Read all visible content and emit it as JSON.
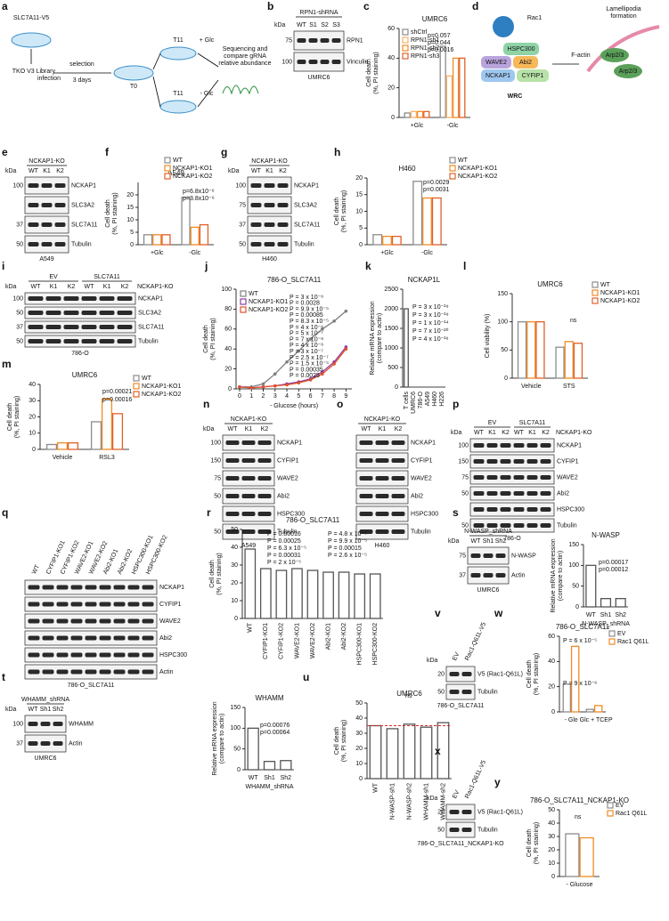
{
  "panels": [
    {
      "letter": "a",
      "type": "diagram",
      "texts": [
        "SLC7A11-V5",
        "TKO V3 Library",
        "infection",
        "selection",
        "3 days",
        "T0",
        "T11",
        "+ Glc",
        "T11",
        "- Glc",
        "Sequencing and",
        "compare gRNA",
        "relative abundance"
      ]
    },
    {
      "letter": "b",
      "type": "blot",
      "header": "RPN1-shRNA",
      "kda_label": "kDa",
      "lanes": [
        "WT",
        "S1",
        "S2",
        "S3"
      ],
      "bands": [
        {
          "name": "RPN1",
          "kda": "75"
        },
        {
          "name": "Vinculin",
          "kda": "100"
        }
      ],
      "footer": "UMRC6"
    },
    {
      "letter": "c",
      "type": "bar",
      "title": "UMRC6",
      "ylabel": [
        "Cell death",
        "(%, PI staining)"
      ],
      "categories": [
        "+Glc",
        "-Glc"
      ],
      "series": [
        {
          "name": "shCtrl",
          "color": "#8c8c8c",
          "values": [
            3,
            48
          ]
        },
        {
          "name": "RPN1-sh1",
          "color": "#f6b26b",
          "values": [
            4,
            28
          ]
        },
        {
          "name": "RPN1-sh2",
          "color": "#f08a24",
          "values": [
            4,
            40
          ]
        },
        {
          "name": "RPN1-sh3",
          "color": "#e0602c",
          "values": [
            4,
            40
          ]
        }
      ],
      "ylim": [
        0,
        60
      ],
      "yticks": [
        0,
        20,
        40,
        60
      ],
      "annotations": [
        {
          "text": "p=0.057"
        },
        {
          "text": "p=0.044"
        },
        {
          "text": "p=0.0016"
        }
      ]
    },
    {
      "letter": "d",
      "type": "diagram",
      "texts": [
        "Rac1",
        "HSPC300",
        "WAVE2",
        "Abi2",
        "NCKAP1",
        "CYFIP1",
        "WRC",
        "F-actin",
        "Lamellipodia",
        "formation",
        "Arp2/3",
        "Arp2/3"
      ]
    },
    {
      "letter": "e",
      "type": "blot",
      "header": "NCKAP1-KO",
      "kda_label": "kDa",
      "lanes": [
        "WT",
        "K1",
        "K2"
      ],
      "bands": [
        {
          "name": "NCKAP1",
          "kda": "100"
        },
        {
          "name": "SLC3A2"
        },
        {
          "name": "SLC7A11",
          "kda": "37"
        },
        {
          "name": "Tubulin",
          "kda": "50"
        }
      ],
      "footer": "A549"
    },
    {
      "letter": "f",
      "type": "bar",
      "title": "A549",
      "ylabel": [
        "Cell death",
        "(%, PI staining)"
      ],
      "categories": [
        "+Glc",
        "-Glc"
      ],
      "series": [
        {
          "name": "WT",
          "color": "#8c8c8c",
          "values": [
            4,
            19
          ]
        },
        {
          "name": "NCKAP1-KO1",
          "color": "#f08a24",
          "values": [
            4,
            7
          ]
        },
        {
          "name": "NCKAP1-KO2",
          "color": "#e0602c",
          "values": [
            4,
            8
          ]
        }
      ],
      "ylim": [
        0,
        25
      ],
      "yticks": [
        0,
        5,
        10,
        15,
        20
      ],
      "annotations": [
        {
          "text": "p=6.8x10⁻⁶"
        },
        {
          "text": "p=3.8x10⁻⁶"
        }
      ]
    },
    {
      "letter": "g",
      "type": "blot",
      "header": "NCKAP1-KO",
      "kda_label": "kDa",
      "lanes": [
        "WT",
        "K1",
        "K2"
      ],
      "bands": [
        {
          "name": "NCKAP1",
          "kda": "100"
        },
        {
          "name": "SLC3A2",
          "kda": "75"
        },
        {
          "name": "SLC7A11",
          "kda": "37"
        },
        {
          "name": "Tubulin",
          "kda": "50"
        }
      ],
      "footer": "H460"
    },
    {
      "letter": "h",
      "type": "bar",
      "title": "H460",
      "ylabel": [
        "Cell death",
        "(%, PI staining)"
      ],
      "categories": [
        "+Glc",
        "-Glc"
      ],
      "series": [
        {
          "name": "WT",
          "color": "#8c8c8c",
          "values": [
            3,
            19
          ]
        },
        {
          "name": "NCKAP1-KO1",
          "color": "#f08a24",
          "values": [
            2.5,
            14
          ]
        },
        {
          "name": "NCKAP1-KO2",
          "color": "#e0602c",
          "values": [
            2.5,
            14
          ]
        }
      ],
      "ylim": [
        0,
        20
      ],
      "yticks": [
        0,
        5,
        10,
        15,
        20
      ],
      "annotations": [
        {
          "text": "p=0.0029"
        },
        {
          "text": "p=0.0031"
        }
      ]
    },
    {
      "letter": "i",
      "type": "blot",
      "groups": [
        "EV",
        "SLC7A11"
      ],
      "header": "NCKAP1-KO",
      "kda_label": "kDa",
      "lanes": [
        "WT",
        "K1",
        "K2",
        "WT",
        "K1",
        "K2"
      ],
      "bands": [
        {
          "name": "NCKAP1",
          "kda": "100"
        },
        {
          "name": "SLC3A2",
          "kda": "50"
        },
        {
          "name": "SLC7A11",
          "kda": "37"
        },
        {
          "name": "Tubulin",
          "kda": "50"
        }
      ],
      "footer": "786-O"
    },
    {
      "letter": "j",
      "type": "line",
      "title": "786-O_SLC7A11",
      "ylabel": [
        "Cell death",
        "(%, PI staining)"
      ],
      "xlabel": "- Glucose (hours)",
      "x": [
        0,
        1,
        2,
        3,
        4,
        5,
        6,
        7,
        8,
        9
      ],
      "series": [
        {
          "name": "WT",
          "color": "#7f7f7f",
          "values": [
            2,
            2,
            5,
            15,
            27,
            38,
            50,
            60,
            68,
            78
          ]
        },
        {
          "name": "NCKAP1-KO1",
          "color": "#8e3fa0",
          "values": [
            2,
            1,
            2,
            3,
            5,
            7,
            10,
            17,
            27,
            42
          ]
        },
        {
          "name": "NCKAP1-KO2",
          "color": "#e0502c",
          "values": [
            2,
            1,
            2,
            3,
            4,
            6,
            9,
            15,
            25,
            40
          ]
        }
      ],
      "xlim": [
        -0.3,
        9.5
      ],
      "xticks": [
        0,
        1,
        2,
        3,
        4,
        5,
        6,
        7,
        8,
        9
      ],
      "ylim": [
        0,
        100
      ],
      "yticks": [
        0,
        20,
        40,
        60,
        80,
        100
      ],
      "annotations": [
        {
          "text": "P = 3 x 10⁻⁶",
          "color": "#8e3fa0"
        },
        {
          "text": "P = 0.0028",
          "color": "#e0602c"
        },
        {
          "text": "P = 9.9 x 10⁻⁵",
          "color": "#8e3fa0"
        },
        {
          "text": "P = 0.00085",
          "color": "#e0602c"
        },
        {
          "text": "P = 8.3 x 10⁻⁵",
          "color": "#e0602c"
        },
        {
          "text": "P = 4 x 10⁻⁶",
          "color": "#8e3fa0"
        },
        {
          "text": "P = 5 x 10⁻⁷",
          "color": "#e0602c"
        },
        {
          "text": "P = 7 x 10⁻⁶",
          "color": "#e0602c"
        },
        {
          "text": "P = 4 x 10⁻⁶",
          "color": "#8e3fa0"
        },
        {
          "text": "P = 3 x 10⁻⁷",
          "color": "#e0602c"
        },
        {
          "text": "P = 2.5 x 10⁻⁷",
          "color": "#8e3fa0"
        },
        {
          "text": "P = 1.5 x 10⁻⁵",
          "color": "#e0602c"
        },
        {
          "text": "P = 0.00035",
          "color": "#8e3fa0"
        },
        {
          "text": "P = 0.0025",
          "color": "#e0602c"
        }
      ]
    },
    {
      "letter": "k",
      "type": "bar",
      "title": "NCKAP1L",
      "ylabel": [
        "Relative mRNA expression",
        "(compare to actin)"
      ],
      "categories": [
        "T cells",
        "UMRC6",
        "786-O",
        "A549",
        "H460",
        "H226"
      ],
      "values": [
        2000,
        0,
        0,
        0,
        0,
        0
      ],
      "color": "#555555",
      "ylim": [
        0,
        2500
      ],
      "yticks": [
        0,
        500,
        1000,
        1500,
        2000,
        2500
      ],
      "annotations": [
        {
          "text": "P = 3 x 10⁻¹⁹"
        },
        {
          "text": "P = 3 x 10⁻¹⁹"
        },
        {
          "text": "P = 1 x 10⁻¹⁴"
        },
        {
          "text": "P = 7 x 10⁻²⁰"
        },
        {
          "text": "P = 4 x 10⁻¹⁶"
        }
      ]
    },
    {
      "letter": "l",
      "type": "bar",
      "title": "UMRC6",
      "ylabel": [
        "Cell viability (%)"
      ],
      "categories": [
        "Vehicle",
        "STS"
      ],
      "series": [
        {
          "name": "WT",
          "color": "#8c8c8c",
          "values": [
            100,
            55
          ]
        },
        {
          "name": "NCKAP1-KO1",
          "color": "#f08a24",
          "values": [
            100,
            65
          ]
        },
        {
          "name": "NCKAP1-KO2",
          "color": "#e0602c",
          "values": [
            100,
            62
          ]
        }
      ],
      "ylim": [
        0,
        150
      ],
      "yticks": [
        0,
        50,
        100,
        150
      ],
      "annotations": [
        {
          "text": "ns"
        }
      ]
    },
    {
      "letter": "m",
      "type": "bar",
      "title": "UMRC6",
      "ylabel": [
        "Cell death",
        "(%, PI staining)"
      ],
      "categories": [
        "Vehicle",
        "RSL3"
      ],
      "series": [
        {
          "name": "WT",
          "color": "#8c8c8c",
          "values": [
            3,
            17
          ]
        },
        {
          "name": "NCKAP1-KO1",
          "color": "#f08a24",
          "values": [
            4,
            31
          ]
        },
        {
          "name": "NCKAP1-KO2",
          "color": "#e0602c",
          "values": [
            4,
            22
          ]
        }
      ],
      "ylim": [
        0,
        40
      ],
      "yticks": [
        0,
        10,
        20,
        30,
        40
      ],
      "annotations": [
        {
          "text": "p=0.00021"
        },
        {
          "text": "p=0.00016"
        }
      ]
    },
    {
      "letter": "n",
      "type": "blot",
      "header": "NCKAP1-KO",
      "kda_label": "kDa",
      "lanes": [
        "WT",
        "K1",
        "K2"
      ],
      "bands": [
        {
          "name": "NCKAP1",
          "kda": "100"
        },
        {
          "name": "CYFIP1",
          "kda": "150"
        },
        {
          "name": "WAVE2",
          "kda": "75"
        },
        {
          "name": "Abi2",
          "kda": "50"
        },
        {
          "name": "HSPC300"
        },
        {
          "name": "Tubulin",
          "kda": "50"
        }
      ],
      "footer": "A549"
    },
    {
      "letter": "o",
      "type": "blot",
      "header": "NCKAP1-KO",
      "lanes": [
        "WT",
        "K1",
        "K2"
      ],
      "bands": [
        {
          "name": "NCKAP1"
        },
        {
          "name": "CYFIP1"
        },
        {
          "name": "WAVE2"
        },
        {
          "name": "Abi2"
        },
        {
          "name": "HSPC300"
        },
        {
          "name": "Tubulin"
        }
      ],
      "footer": "H460"
    },
    {
      "letter": "p",
      "type": "blot",
      "groups": [
        "EV",
        "SLC7A11"
      ],
      "header": "NCKAP1-KO",
      "kda_label": "kDa",
      "lanes": [
        "WT",
        "K1",
        "K2",
        "WT",
        "K1",
        "K2"
      ],
      "bands": [
        {
          "name": "NCKAP1",
          "kda": "100"
        },
        {
          "name": "CYFIP1",
          "kda": "150"
        },
        {
          "name": "WAVE2",
          "kda": "75"
        },
        {
          "name": "Abi2",
          "kda": "50"
        },
        {
          "name": "HSPC300"
        },
        {
          "name": "Tubulin",
          "kda": "50"
        }
      ],
      "footer": "786-O"
    },
    {
      "letter": "q",
      "type": "blot",
      "lanes": [
        "WT",
        "CYFIP1-KO1",
        "CYFIP1-KO2",
        "WAVE2-KO1",
        "WAVE2-KO2",
        "Abi2-KO1",
        "Abi2-KO2",
        "HSPC300-KO1",
        "HSPC300-KO2"
      ],
      "bands": [
        {
          "name": "NCKAP1"
        },
        {
          "name": "CYFIP1"
        },
        {
          "name": "WAVE2"
        },
        {
          "name": "Abi2"
        },
        {
          "name": "HSPC300"
        },
        {
          "name": "Actin"
        }
      ],
      "footer": "786-O_SLC7A11"
    },
    {
      "letter": "r",
      "type": "bar",
      "title": "786-O_SLC7A11",
      "ylabel": [
        "Cell death",
        "(%, PI staining)"
      ],
      "categories": [
        "WT",
        "CYFIP1-KO1",
        "CYFIP1-KO2",
        "WAVE2-KO1",
        "WAVE2-KO2",
        "Abi2-KO1",
        "Abi2-KO2",
        "HSPC300-KO1",
        "HSPC300-KO2"
      ],
      "values": [
        39,
        28,
        27,
        28,
        27,
        26,
        26,
        25,
        25
      ],
      "color": "#555555",
      "ylim": [
        0,
        50
      ],
      "yticks": [
        0,
        10,
        20,
        30,
        40,
        50
      ],
      "annotations": [
        {
          "text": "P = 0.00016"
        },
        {
          "text": "P = 4.8 x 10⁻⁵"
        },
        {
          "text": "P = 0.00025"
        },
        {
          "text": "P = 9.9 x 10⁻⁵"
        },
        {
          "text": "P = 6.3 x 10⁻⁵"
        },
        {
          "text": "P = 0.00015"
        },
        {
          "text": "P = 0.00031"
        },
        {
          "text": "P = 2.6 x 10⁻⁵"
        },
        {
          "text": "P = 2 x 10⁻⁵"
        }
      ]
    },
    {
      "letter": "s",
      "type": "blot",
      "header": "N-WASP_shRNA",
      "kda_label": "kDa",
      "lanes": [
        "WT",
        "Sh1",
        "Sh2"
      ],
      "bands": [
        {
          "name": "N-WASP",
          "kda": "75"
        },
        {
          "name": "Actin",
          "kda": "37"
        }
      ],
      "footer": "UMRC6"
    },
    {
      "type": "bar",
      "title": "N-WASP",
      "ylabel": [
        "Relative mRNA expression",
        "(compare to actin)"
      ],
      "xlabel": "N-WASP_shRNA",
      "categories": [
        "WT",
        "Sh1",
        "Sh2"
      ],
      "values": [
        100,
        20,
        20
      ],
      "color": "#555555",
      "ylim": [
        0,
        150
      ],
      "yticks": [
        0,
        50,
        100,
        150
      ],
      "annotations": [
        {
          "text": "p=0.00017"
        },
        {
          "text": "p=0.00012"
        }
      ]
    },
    {
      "letter": "t",
      "type": "blot",
      "header": "WHAMM_shRNA",
      "kda_label": "kDa",
      "lanes": [
        "WT",
        "Sh1",
        "Sh2"
      ],
      "bands": [
        {
          "name": "WHAMM",
          "kda": "100"
        },
        {
          "name": "Actin",
          "kda": "37"
        }
      ],
      "footer": "UMRC6"
    },
    {
      "type": "bar",
      "title": "WHAMM",
      "ylabel": [
        "Relative mRNA expression",
        "(compare to actin)"
      ],
      "xlabel": "WHAMM_shRNA",
      "categories": [
        "WT",
        "Sh1",
        "Sh2"
      ],
      "values": [
        100,
        20,
        22
      ],
      "color": "#555555",
      "ylim": [
        0,
        150
      ],
      "yticks": [
        0,
        50,
        100,
        150
      ],
      "annotations": [
        {
          "text": "p=0.00076"
        },
        {
          "text": "p=0.00064"
        }
      ]
    },
    {
      "letter": "u",
      "type": "bar",
      "title": "UMRC6",
      "ylabel": [
        "Cell death",
        "(%, PI staining)"
      ],
      "categories": [
        "WT",
        "N-WASP-sh1",
        "N-WASP-sh2",
        "WHAMM-sh1",
        "WHAMM-sh2"
      ],
      "values": [
        35,
        33,
        36,
        34,
        37
      ],
      "color": "#555555",
      "ylim": [
        0,
        50
      ],
      "yticks": [
        0,
        10,
        20,
        30,
        40,
        50
      ],
      "refline": 35,
      "refline_color": "#d62728",
      "annotations": [
        {
          "text": "ns"
        }
      ]
    },
    {
      "letter": "v",
      "type": "blot",
      "kda_label": "kDa",
      "lanes": [
        "EV",
        "Rac1-Q61L-V5"
      ],
      "bands": [
        {
          "name": "V5 (Rac1-Q61L)",
          "kda": "20"
        },
        {
          "name": "Tubulin",
          "kda": "50"
        }
      ],
      "footer": "786-O_SLC7A11"
    },
    {
      "letter": "w",
      "type": "bar",
      "title": "786-O_SLC7A11",
      "ylabel": [
        "Cell death",
        "(%, PI staining)"
      ],
      "categories": [
        "- Glc",
        "- Glc + TCEP"
      ],
      "series": [
        {
          "name": "EV",
          "color": "#8c8c8c",
          "values": [
            22,
            2
          ]
        },
        {
          "name": "Rac1 Q61L",
          "color": "#f08a24",
          "values": [
            52,
            5
          ]
        }
      ],
      "ylim": [
        0,
        60
      ],
      "yticks": [
        0,
        20,
        40,
        60
      ],
      "annotations": [
        {
          "text": "P = 6 x 10⁻⁵"
        },
        {
          "text": "P = 9 x 10⁻⁶"
        }
      ]
    },
    {
      "letter": "x",
      "type": "blot",
      "kda_label": "kDa",
      "lanes": [
        "EV",
        "Rac1-Q61L-V5"
      ],
      "bands": [
        {
          "name": "V5 (Rac1-Q61L)",
          "kda": "20"
        },
        {
          "name": "Tubulin",
          "kda": "50"
        }
      ],
      "footer": "786-O_SLC7A11_NCKAP1-KO"
    },
    {
      "letter": "y",
      "type": "bar",
      "title": "786-O_SLC7A11_NCKAP1-KO",
      "ylabel": [
        "Cell death",
        "(%, PI staining)"
      ],
      "categories": [
        "- Glucose"
      ],
      "series": [
        {
          "name": "EV",
          "color": "#8c8c8c",
          "values": [
            32
          ]
        },
        {
          "name": "Rac1 Q61L",
          "color": "#f08a24",
          "values": [
            29
          ]
        }
      ],
      "ylim": [
        0,
        50
      ],
      "yticks": [
        0,
        10,
        20,
        30,
        40,
        50
      ],
      "annotations": [
        {
          "text": "ns"
        }
      ]
    }
  ]
}
